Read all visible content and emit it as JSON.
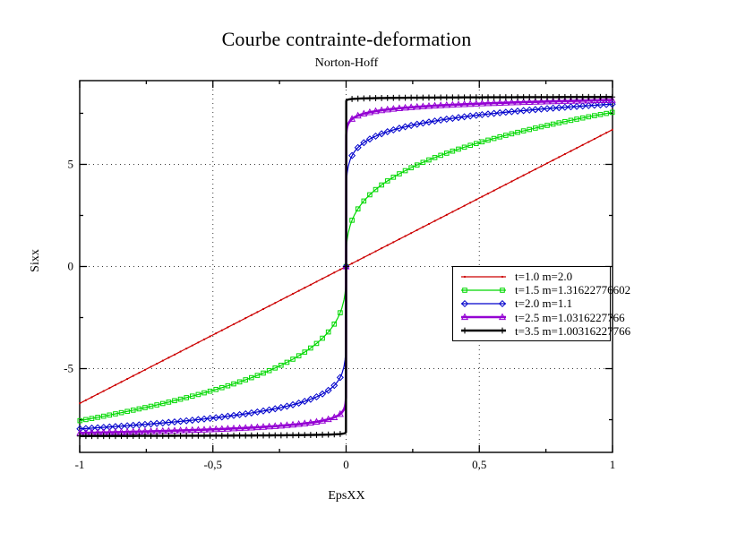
{
  "window": {
    "background": "#ffffff"
  },
  "chart_data": {
    "type": "line",
    "title": "Courbe contrainte-deformation",
    "subtitle": "Norton-Hoff",
    "xlabel": "EpsXX",
    "ylabel": "Sixx",
    "xlim": [
      -1,
      1
    ],
    "ylim": [
      -9.1,
      9.1
    ],
    "x_ticks": [
      {
        "v": -1,
        "label": "-1"
      },
      {
        "v": -0.5,
        "label": "-0,5"
      },
      {
        "v": 0,
        "label": "0"
      },
      {
        "v": 0.5,
        "label": "0,5"
      },
      {
        "v": 1,
        "label": "1"
      }
    ],
    "y_ticks": [
      {
        "v": -5,
        "label": "-5"
      },
      {
        "v": 0,
        "label": "0"
      },
      {
        "v": 5,
        "label": "5"
      }
    ],
    "x_minor_ticks": [
      -0.75,
      -0.25,
      0.25,
      0.75
    ],
    "y_minor_ticks": [
      -7.5,
      -2.5,
      2.5,
      7.5
    ],
    "grid": {
      "style": "dotted",
      "color": "#3a3a3a",
      "on_major_ticks": true
    },
    "legend_position": "center-right",
    "symmetry": "odd (y(-x) = -y(x))",
    "model": "sigma(eps) = amplitude * sign(eps) * |eps|^(m-1)",
    "marker_step": 0.0222,
    "series": [
      {
        "label": "t=1.0 m=2.0",
        "t": "1.0",
        "m": 2.0,
        "color": "#cc0000",
        "marker": "dot",
        "line_width": 1.2,
        "amplitude": 6.7,
        "exponent": 1.0,
        "x_sample": [
          0,
          0.1,
          0.2,
          0.3,
          0.4,
          0.5,
          0.6,
          0.7,
          0.8,
          0.9,
          1.0
        ],
        "y_sample": [
          0,
          0.67,
          1.34,
          2.01,
          2.68,
          3.35,
          4.02,
          4.69,
          5.36,
          6.03,
          6.7
        ]
      },
      {
        "label": "t=1.5 m=1.31622776602",
        "t": "1.5",
        "m": 1.31622776602,
        "color": "#00d800",
        "marker": "square",
        "line_width": 1.2,
        "amplitude": 7.55,
        "exponent": 0.31622776602,
        "x_sample": [
          0,
          0.1,
          0.2,
          0.3,
          0.4,
          0.5,
          0.6,
          0.7,
          0.8,
          0.9,
          1.0
        ],
        "y_sample": [
          0,
          3.65,
          4.54,
          5.16,
          5.65,
          6.06,
          6.42,
          6.75,
          7.03,
          7.3,
          7.55
        ]
      },
      {
        "label": "t=2.0 m=1.1",
        "t": "2.0",
        "m": 1.1,
        "color": "#0000cc",
        "marker": "diamond",
        "line_width": 1.2,
        "amplitude": 7.95,
        "exponent": 0.1,
        "x_sample": [
          0,
          0.1,
          0.2,
          0.3,
          0.4,
          0.5,
          0.6,
          0.7,
          0.8,
          0.9,
          1.0
        ],
        "y_sample": [
          0,
          6.31,
          6.77,
          7.05,
          7.25,
          7.42,
          7.55,
          7.67,
          7.78,
          7.87,
          7.95
        ]
      },
      {
        "label": "t=2.5 m=1.0316227766",
        "t": "2.5",
        "m": 1.0316227766,
        "color": "#9400d3",
        "marker": "triangle",
        "line_width": 2.6,
        "amplitude": 8.15,
        "exponent": 0.0316227766,
        "x_sample": [
          0,
          0.1,
          0.2,
          0.3,
          0.4,
          0.5,
          0.6,
          0.7,
          0.8,
          0.9,
          1.0
        ],
        "y_sample": [
          0,
          7.58,
          7.75,
          7.85,
          7.92,
          7.97,
          8.02,
          8.06,
          8.09,
          8.12,
          8.15
        ]
      },
      {
        "label": "t=3.5 m=1.00316227766",
        "t": "3.5",
        "m": 1.00316227766,
        "color": "#000000",
        "marker": "plus",
        "line_width": 2.4,
        "amplitude": 8.3,
        "exponent": 0.00316227766,
        "x_sample": [
          0,
          0.1,
          0.2,
          0.3,
          0.4,
          0.5,
          0.6,
          0.7,
          0.8,
          0.9,
          1.0
        ],
        "y_sample": [
          0,
          8.24,
          8.26,
          8.27,
          8.28,
          8.28,
          8.29,
          8.29,
          8.3,
          8.3,
          8.3
        ]
      }
    ]
  }
}
